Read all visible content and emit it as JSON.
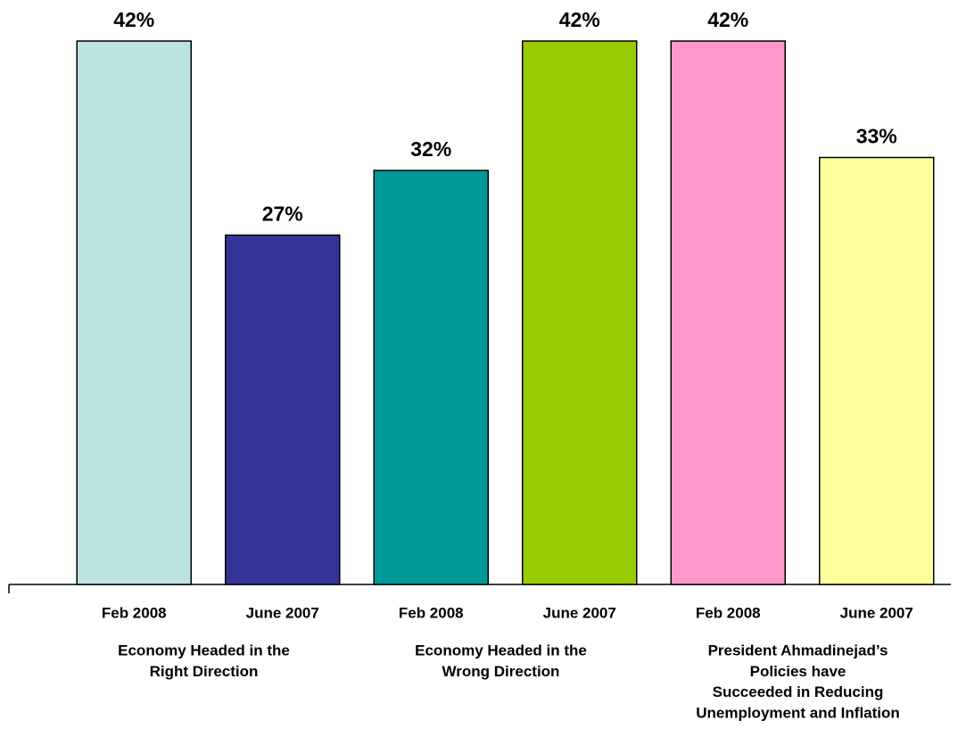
{
  "chart_data": {
    "type": "bar",
    "categories": [
      "Feb 2008",
      "June 2007",
      "Feb 2008",
      "June 2007",
      "Feb 2008",
      "June 2007"
    ],
    "values": [
      42,
      27,
      32,
      42,
      42,
      33
    ],
    "value_labels": [
      "42%",
      "27%",
      "32%",
      "42%",
      "42%",
      "33%"
    ],
    "colors": [
      "#bde2e2",
      "#343498",
      "#009999",
      "#99cc00",
      "#ff99cc",
      "#ffff99"
    ],
    "groups": [
      {
        "label": [
          "Economy Headed in the",
          "Right Direction"
        ]
      },
      {
        "label": [
          "Economy Headed in the",
          "Wrong Direction"
        ]
      },
      {
        "label": [
          "President Ahmadinejad’s",
          "Policies have",
          "Succeeded in Reducing",
          "Unemployment and Inflation"
        ]
      }
    ],
    "ylim": [
      0,
      42
    ]
  }
}
